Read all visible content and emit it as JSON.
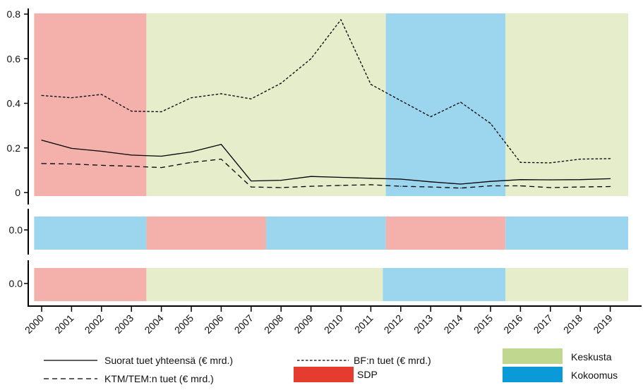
{
  "chart_data": {
    "type": "line",
    "x": [
      2000,
      2001,
      2002,
      2003,
      2004,
      2005,
      2006,
      2007,
      2008,
      2009,
      2010,
      2011,
      2012,
      2013,
      2014,
      2015,
      2016,
      2017,
      2018,
      2019
    ],
    "x_tick_labels": [
      "2000",
      "2001",
      "2002",
      "2003",
      "2004",
      "2005",
      "2006",
      "2007",
      "2008",
      "2009",
      "2010",
      "2011",
      "2012",
      "2013",
      "2014",
      "2015",
      "2016",
      "2017",
      "2018",
      "2019"
    ],
    "ylim": [
      0,
      0.8
    ],
    "y_ticks": [
      0,
      0.2,
      0.4,
      0.6,
      0.8
    ],
    "y_tick_labels": [
      "0",
      "0.2",
      "0.4",
      "0.6",
      "0.8"
    ],
    "series": [
      {
        "name": "Suorat tuet yhteensä (€ mrd.)",
        "style": "solid",
        "values": [
          0.235,
          0.198,
          0.185,
          0.168,
          0.163,
          0.182,
          0.216,
          0.052,
          0.055,
          0.072,
          0.068,
          0.064,
          0.06,
          0.048,
          0.038,
          0.05,
          0.058,
          0.057,
          0.058,
          0.062
        ]
      },
      {
        "name": "BF:n tuet (€ mrd.)",
        "style": "dotted",
        "values": [
          0.435,
          0.425,
          0.44,
          0.365,
          0.362,
          0.425,
          0.443,
          0.42,
          0.49,
          0.6,
          0.775,
          0.485,
          0.412,
          0.34,
          0.405,
          0.31,
          0.135,
          0.133,
          0.15,
          0.152
        ]
      },
      {
        "name": "KTM/TEM:n tuet (€ mrd.)",
        "style": "dashed",
        "values": [
          0.13,
          0.128,
          0.122,
          0.118,
          0.112,
          0.135,
          0.15,
          0.025,
          0.022,
          0.028,
          0.032,
          0.035,
          0.028,
          0.025,
          0.02,
          0.03,
          0.03,
          0.022,
          0.025,
          0.027
        ]
      }
    ],
    "party_periods": [
      {
        "party": "SDP",
        "start": 1999.75,
        "end": 2003.5
      },
      {
        "party": "Keskusta",
        "start": 2003.5,
        "end": 2011.5
      },
      {
        "party": "Kokoomus",
        "start": 2011.5,
        "end": 2015.5
      },
      {
        "party": "Keskusta",
        "start": 2015.5,
        "end": 2019.6
      }
    ],
    "band_rows": [
      {
        "y_tick_label": "0.0",
        "periods": [
          {
            "party": "Kokoomus",
            "start": 1999.75,
            "end": 2003.5
          },
          {
            "party": "SDP",
            "start": 2003.5,
            "end": 2007.5
          },
          {
            "party": "Kokoomus",
            "start": 2007.5,
            "end": 2011.5
          },
          {
            "party": "SDP",
            "start": 2011.5,
            "end": 2015.5
          },
          {
            "party": "Kokoomus",
            "start": 2015.5,
            "end": 2019.6
          }
        ]
      },
      {
        "y_tick_label": "0.0",
        "periods": [
          {
            "party": "SDP",
            "start": 1999.75,
            "end": 2003.5
          },
          {
            "party": "Keskusta",
            "start": 2003.5,
            "end": 2011.4
          },
          {
            "party": "Kokoomus",
            "start": 2011.4,
            "end": 2015.5
          },
          {
            "party": "Keskusta",
            "start": 2015.5,
            "end": 2019.6
          }
        ]
      }
    ],
    "parties": [
      {
        "name": "SDP",
        "band_color": "#f4b0aa",
        "legend_color": "#e63c2f"
      },
      {
        "name": "Keskusta",
        "band_color": "#e5edcb",
        "legend_color": "#bfd78e"
      },
      {
        "name": "Kokoomus",
        "band_color": "#9bd6ee",
        "legend_color": "#0a9ad8"
      }
    ],
    "legend": {
      "lines": [
        {
          "label": "Suorat tuet yhteensä (€ mrd.)",
          "style": "solid"
        },
        {
          "label": "KTM/TEM:n tuet (€ mrd.)",
          "style": "dashed"
        },
        {
          "label": "BF:n tuet (€ mrd.)",
          "style": "dotted"
        }
      ],
      "patches": [
        {
          "label": "SDP"
        },
        {
          "label": "Keskusta"
        },
        {
          "label": "Kokoomus"
        }
      ]
    },
    "grid": false,
    "title": "",
    "xlabel": "",
    "ylabel": ""
  }
}
